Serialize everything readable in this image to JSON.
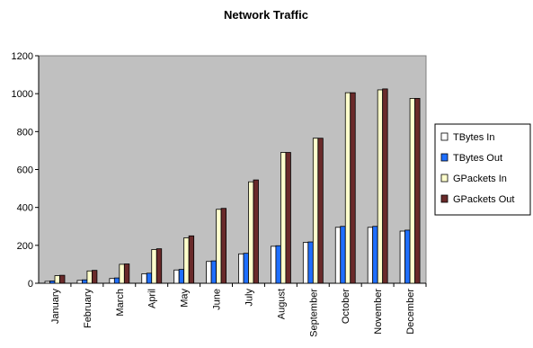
{
  "chart_data": {
    "type": "bar",
    "title": "Network Traffic",
    "xlabel": "",
    "ylabel": "",
    "ylim": [
      0,
      1200
    ],
    "yticks": [
      0,
      200,
      400,
      600,
      800,
      1000,
      1200
    ],
    "grid": false,
    "legend_position": "right",
    "categories": [
      "January",
      "February",
      "March",
      "April",
      "May",
      "June",
      "July",
      "August",
      "September",
      "October",
      "November",
      "December"
    ],
    "series": [
      {
        "name": "TBytes In",
        "color": "#ffffff",
        "values": [
          10,
          15,
          25,
          50,
          70,
          115,
          155,
          195,
          215,
          295,
          295,
          275
        ]
      },
      {
        "name": "TBytes Out",
        "color": "#1f6fff",
        "values": [
          12,
          18,
          28,
          53,
          73,
          118,
          158,
          198,
          218,
          300,
          300,
          280
        ]
      },
      {
        "name": "GPackets In",
        "color": "#ffffcc",
        "values": [
          40,
          65,
          100,
          178,
          240,
          390,
          535,
          690,
          765,
          1005,
          1020,
          975
        ]
      },
      {
        "name": "GPackets Out",
        "color": "#6a2a2a",
        "values": [
          42,
          68,
          102,
          182,
          250,
          395,
          545,
          690,
          765,
          1005,
          1025,
          975
        ]
      }
    ]
  }
}
